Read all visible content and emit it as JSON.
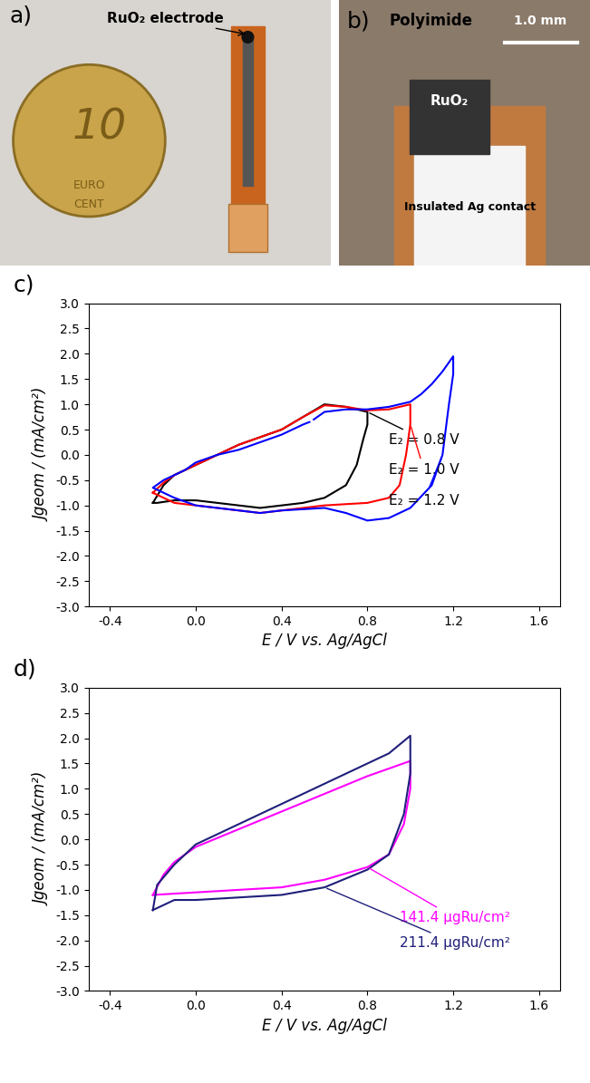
{
  "photos": [
    {
      "panel": "a)",
      "labels": [
        "RuO₂ electrode"
      ],
      "coin_text": [
        "10",
        "EURO",
        "CENT"
      ]
    },
    {
      "panel": "b)",
      "labels": [
        "Polyimide",
        "RuO₂",
        "Insulated Ag contact"
      ],
      "scale_bar": "1.0 mm"
    }
  ],
  "chart_data": [
    {
      "type": "line",
      "panel": "c)",
      "x_label": "E / V vs. Ag/AgCl",
      "y_label": "Jgeom / (mA/cm²)",
      "xlim": [
        -0.5,
        1.7
      ],
      "xticks": [
        -0.4,
        0.0,
        0.4,
        0.8,
        1.2,
        1.6
      ],
      "ylim": [
        -3.0,
        3.0
      ],
      "yticks": [
        -3.0,
        -2.5,
        -2.0,
        -1.5,
        -1.0,
        -0.5,
        0.0,
        0.5,
        1.0,
        1.5,
        2.0,
        2.5,
        3.0
      ],
      "series": [
        {
          "name": "E₂ = 0.8 V",
          "color": "#000000",
          "x": [
            -0.2,
            -0.15,
            -0.1,
            0.0,
            0.1,
            0.2,
            0.3,
            0.4,
            0.5,
            0.6,
            0.7,
            0.8,
            0.8,
            0.78,
            0.75,
            0.7,
            0.6,
            0.5,
            0.4,
            0.3,
            0.2,
            0.1,
            0.0,
            -0.1,
            -0.18,
            -0.2
          ],
          "values": [
            -0.95,
            -0.6,
            -0.4,
            -0.2,
            0.0,
            0.2,
            0.35,
            0.5,
            0.75,
            1.0,
            0.95,
            0.85,
            0.6,
            0.3,
            -0.2,
            -0.6,
            -0.85,
            -0.95,
            -1.0,
            -1.05,
            -1.0,
            -0.95,
            -0.9,
            -0.9,
            -0.95,
            -0.95
          ]
        },
        {
          "name": "E₂ = 1.0 V",
          "color": "#ff0000",
          "x": [
            -0.2,
            -0.15,
            -0.1,
            0.0,
            0.1,
            0.2,
            0.3,
            0.4,
            0.5,
            0.6,
            0.7,
            0.8,
            0.9,
            1.0,
            1.0,
            0.98,
            0.95,
            0.9,
            0.8,
            0.6,
            0.4,
            0.3,
            0.2,
            0.0,
            -0.1,
            -0.2
          ],
          "values": [
            -0.75,
            -0.55,
            -0.4,
            -0.2,
            0.0,
            0.2,
            0.35,
            0.5,
            0.75,
            0.98,
            0.95,
            0.88,
            0.9,
            1.0,
            0.6,
            0.0,
            -0.6,
            -0.85,
            -0.95,
            -1.0,
            -1.1,
            -1.15,
            -1.1,
            -1.0,
            -0.95,
            -0.75
          ]
        },
        {
          "name": "E₂ = 1.2 V",
          "color": "#0000ff",
          "x": [
            0.55,
            0.6,
            0.7,
            0.8,
            0.9,
            1.0,
            1.05,
            1.1,
            1.15,
            1.2,
            1.2,
            1.18,
            1.15,
            1.1,
            1.0,
            0.9,
            0.8,
            0.7,
            0.6,
            0.4,
            0.3,
            0.2,
            0.0,
            -0.1,
            -0.2,
            -0.15,
            -0.05,
            0.0,
            0.1,
            0.2,
            0.3,
            0.4,
            0.5,
            0.53
          ],
          "values": [
            0.7,
            0.85,
            0.9,
            0.9,
            0.95,
            1.05,
            1.2,
            1.4,
            1.65,
            1.95,
            1.6,
            1.0,
            0.0,
            -0.6,
            -1.05,
            -1.25,
            -1.3,
            -1.15,
            -1.05,
            -1.1,
            -1.15,
            -1.1,
            -1.0,
            -0.85,
            -0.65,
            -0.5,
            -0.3,
            -0.15,
            0.0,
            0.1,
            0.25,
            0.4,
            0.6,
            0.65
          ]
        }
      ]
    },
    {
      "type": "line",
      "panel": "d)",
      "x_label": "E / V vs. Ag/AgCl",
      "y_label": "Jgeom / (mA/cm²)",
      "xlim": [
        -0.5,
        1.7
      ],
      "xticks": [
        -0.4,
        0.0,
        0.4,
        0.8,
        1.2,
        1.6
      ],
      "ylim": [
        -3.0,
        3.0
      ],
      "yticks": [
        -3.0,
        -2.5,
        -2.0,
        -1.5,
        -1.0,
        -0.5,
        0.0,
        0.5,
        1.0,
        1.5,
        2.0,
        2.5,
        3.0
      ],
      "series": [
        {
          "name": "141.4 µgRu/cm²",
          "color": "#ff00ff",
          "x": [
            -0.2,
            -0.15,
            -0.1,
            0.0,
            0.2,
            0.4,
            0.6,
            0.8,
            1.0,
            1.0,
            0.97,
            0.9,
            0.8,
            0.6,
            0.4,
            0.2,
            0.0,
            -0.2
          ],
          "values": [
            -1.1,
            -0.7,
            -0.45,
            -0.15,
            0.2,
            0.55,
            0.9,
            1.25,
            1.55,
            1.0,
            0.3,
            -0.3,
            -0.55,
            -0.8,
            -0.95,
            -1.0,
            -1.05,
            -1.1
          ]
        },
        {
          "name": "211.4 µgRu/cm²",
          "color": "#1f1f7a",
          "x": [
            -0.2,
            -0.18,
            -0.1,
            0.0,
            0.2,
            0.4,
            0.6,
            0.8,
            0.9,
            1.0,
            1.0,
            0.97,
            0.9,
            0.8,
            0.6,
            0.4,
            0.2,
            0.0,
            -0.1,
            -0.2
          ],
          "values": [
            -1.4,
            -0.9,
            -0.5,
            -0.1,
            0.3,
            0.7,
            1.1,
            1.5,
            1.7,
            2.05,
            1.3,
            0.5,
            -0.3,
            -0.6,
            -0.95,
            -1.1,
            -1.15,
            -1.2,
            -1.2,
            -1.4
          ]
        }
      ]
    }
  ]
}
